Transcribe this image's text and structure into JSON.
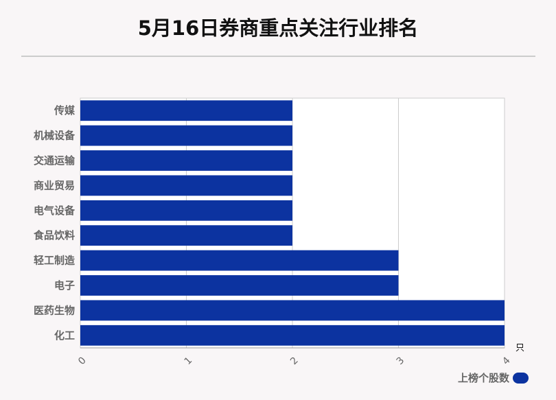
{
  "title": "5月16日券商重点关注行业排名",
  "legend": {
    "label": "上榜个股数"
  },
  "colors": {
    "bar": "#0c33a0",
    "grid": "#cccccc",
    "axis_text": "#666666",
    "background": "#f9f6f7"
  },
  "chart_data": {
    "type": "bar",
    "orientation": "horizontal",
    "categories": [
      "传媒",
      "机械设备",
      "交通运输",
      "商业贸易",
      "电气设备",
      "食品饮料",
      "轻工制造",
      "电子",
      "医药生物",
      "化工"
    ],
    "series": [
      {
        "name": "上榜个股数",
        "values": [
          2,
          2,
          2,
          2,
          2,
          2,
          3,
          3,
          4,
          4
        ]
      }
    ],
    "xlim": [
      0,
      4
    ],
    "xticks": [
      "0",
      "1",
      "2",
      "3",
      "4"
    ],
    "x_unit": "只",
    "grid": true,
    "legend_position": "bottom-right"
  }
}
